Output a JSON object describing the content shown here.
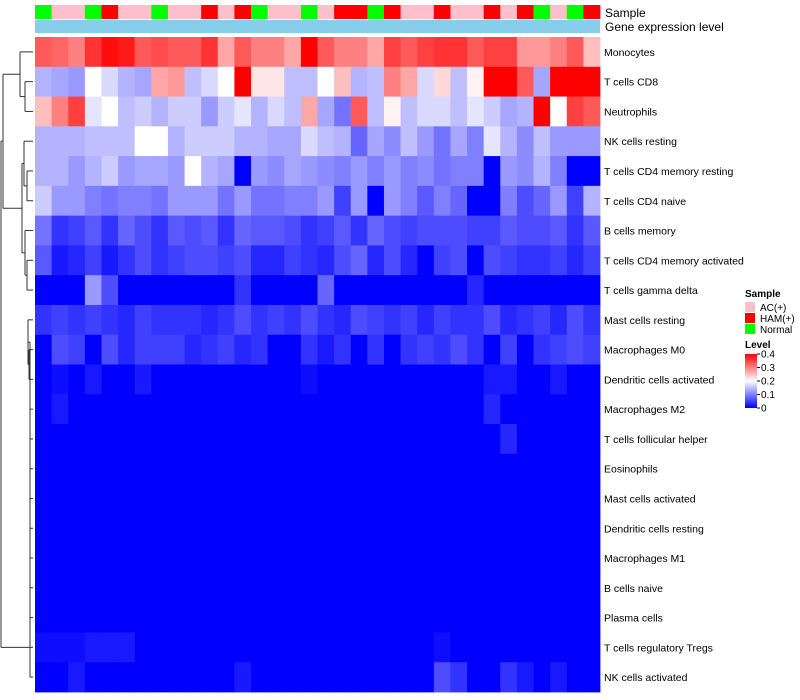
{
  "chart_data": {
    "type": "heatmap",
    "annotation_rows": [
      "Sample",
      "Gene expression level"
    ],
    "rows": [
      "Monocytes",
      "T cells CD8",
      "Neutrophils",
      "NK cells resting",
      "T cells CD4 memory resting",
      "T cells CD4 naive",
      "B cells memory",
      "T cells CD4 memory activated",
      "T cells gamma delta",
      "Mast cells resting",
      "Macrophages M0",
      "Dendritic cells activated",
      "Macrophages M2",
      "T cells follicular helper",
      "Eosinophils",
      "Mast cells activated",
      "Dendritic cells resting",
      "Macrophages M1",
      "B cells naive",
      "Plasma cells",
      "T cells regulatory  Tregs",
      "NK cells activated"
    ],
    "sample_groups": [
      "Normal",
      "AC(+)",
      "AC(+)",
      "Normal",
      "HAM(+)",
      "AC(+)",
      "AC(+)",
      "Normal",
      "AC(+)",
      "AC(+)",
      "HAM(+)",
      "AC(+)",
      "HAM(+)",
      "Normal",
      "AC(+)",
      "AC(+)",
      "Normal",
      "AC(+)",
      "HAM(+)",
      "HAM(+)",
      "Normal",
      "HAM(+)",
      "AC(+)",
      "AC(+)",
      "HAM(+)",
      "AC(+)",
      "AC(+)",
      "HAM(+)",
      "AC(+)",
      "HAM(+)",
      "Normal",
      "AC(+)",
      "Normal",
      "HAM(+)"
    ],
    "values": [
      [
        0.33,
        0.32,
        0.3,
        0.36,
        0.39,
        0.38,
        0.33,
        0.34,
        0.33,
        0.33,
        0.36,
        0.27,
        0.33,
        0.3,
        0.3,
        0.27,
        0.4,
        0.33,
        0.3,
        0.3,
        0.27,
        0.35,
        0.33,
        0.35,
        0.36,
        0.36,
        0.33,
        0.35,
        0.35,
        0.28,
        0.28,
        0.3,
        0.33,
        0.25
      ],
      [
        0.14,
        0.13,
        0.12,
        0.2,
        0.17,
        0.14,
        0.13,
        0.27,
        0.28,
        0.15,
        0.17,
        0.2,
        0.4,
        0.22,
        0.22,
        0.15,
        0.15,
        0.2,
        0.25,
        0.14,
        0.15,
        0.3,
        0.27,
        0.17,
        0.23,
        0.15,
        0.21,
        0.4,
        0.4,
        0.33,
        0.13,
        0.4,
        0.4,
        0.4
      ],
      [
        0.25,
        0.3,
        0.35,
        0.18,
        0.2,
        0.15,
        0.16,
        0.14,
        0.16,
        0.16,
        0.12,
        0.16,
        0.18,
        0.14,
        0.17,
        0.15,
        0.27,
        0.13,
        0.09,
        0.33,
        0.15,
        0.21,
        0.15,
        0.17,
        0.17,
        0.15,
        0.18,
        0.16,
        0.13,
        0.14,
        0.4,
        0.2,
        0.35,
        0.33
      ],
      [
        0.14,
        0.14,
        0.14,
        0.15,
        0.15,
        0.15,
        0.2,
        0.2,
        0.14,
        0.16,
        0.16,
        0.16,
        0.14,
        0.14,
        0.13,
        0.13,
        0.17,
        0.15,
        0.14,
        0.08,
        0.13,
        0.11,
        0.15,
        0.12,
        0.09,
        0.13,
        0.1,
        0.18,
        0.14,
        0.11,
        0.15,
        0.12,
        0.12,
        0.12
      ],
      [
        0.14,
        0.14,
        0.12,
        0.14,
        0.16,
        0.12,
        0.13,
        0.13,
        0.12,
        0.2,
        0.14,
        0.13,
        0.0,
        0.12,
        0.11,
        0.13,
        0.12,
        0.11,
        0.1,
        0.12,
        0.1,
        0.12,
        0.1,
        0.11,
        0.09,
        0.1,
        0.1,
        0.0,
        0.12,
        0.11,
        0.14,
        0.1,
        0.0,
        0.0
      ],
      [
        0.16,
        0.12,
        0.12,
        0.1,
        0.09,
        0.1,
        0.1,
        0.09,
        0.12,
        0.12,
        0.12,
        0.09,
        0.12,
        0.09,
        0.09,
        0.1,
        0.1,
        0.12,
        0.05,
        0.12,
        0.0,
        0.12,
        0.1,
        0.07,
        0.1,
        0.08,
        0.0,
        0.0,
        0.1,
        0.06,
        0.08,
        0.12,
        0.05,
        0.14
      ],
      [
        0.09,
        0.04,
        0.05,
        0.07,
        0.04,
        0.08,
        0.06,
        0.04,
        0.07,
        0.06,
        0.07,
        0.04,
        0.08,
        0.07,
        0.07,
        0.06,
        0.04,
        0.05,
        0.07,
        0.04,
        0.08,
        0.06,
        0.05,
        0.06,
        0.06,
        0.06,
        0.05,
        0.05,
        0.07,
        0.06,
        0.06,
        0.07,
        0.04,
        0.07
      ],
      [
        0.07,
        0.02,
        0.03,
        0.05,
        0.02,
        0.04,
        0.06,
        0.04,
        0.05,
        0.06,
        0.06,
        0.05,
        0.06,
        0.03,
        0.03,
        0.05,
        0.04,
        0.03,
        0.06,
        0.08,
        0.03,
        0.06,
        0.03,
        0.0,
        0.05,
        0.06,
        0.0,
        0.06,
        0.05,
        0.04,
        0.04,
        0.05,
        0.03,
        0.05
      ],
      [
        0.0,
        0.0,
        0.0,
        0.12,
        0.06,
        0.0,
        0.0,
        0.0,
        0.0,
        0.0,
        0.0,
        0.0,
        0.04,
        0.0,
        0.0,
        0.0,
        0.0,
        0.08,
        0.0,
        0.0,
        0.0,
        0.0,
        0.0,
        0.0,
        0.0,
        0.0,
        0.03,
        0.0,
        0.0,
        0.0,
        0.0,
        0.0,
        0.0,
        0.0
      ],
      [
        0.04,
        0.05,
        0.04,
        0.05,
        0.04,
        0.03,
        0.05,
        0.04,
        0.04,
        0.04,
        0.03,
        0.04,
        0.06,
        0.04,
        0.05,
        0.04,
        0.06,
        0.04,
        0.03,
        0.06,
        0.05,
        0.04,
        0.05,
        0.03,
        0.05,
        0.04,
        0.04,
        0.06,
        0.03,
        0.04,
        0.05,
        0.03,
        0.06,
        0.04
      ],
      [
        0.0,
        0.06,
        0.05,
        0.0,
        0.06,
        0.03,
        0.05,
        0.05,
        0.05,
        0.03,
        0.04,
        0.05,
        0.03,
        0.04,
        0.0,
        0.0,
        0.04,
        0.02,
        0.04,
        0.0,
        0.04,
        0.0,
        0.04,
        0.05,
        0.04,
        0.06,
        0.04,
        0.0,
        0.05,
        0.0,
        0.04,
        0.05,
        0.06,
        0.05
      ],
      [
        0.0,
        0.01,
        0.0,
        0.02,
        0.0,
        0.0,
        0.02,
        0.0,
        0.0,
        0.0,
        0.0,
        0.0,
        0.0,
        0.0,
        0.0,
        0.0,
        0.01,
        0.0,
        0.0,
        0.0,
        0.0,
        0.0,
        0.0,
        0.0,
        0.0,
        0.0,
        0.0,
        0.02,
        0.02,
        0.0,
        0.0,
        0.02,
        0.0,
        0.0
      ],
      [
        0.0,
        0.02,
        0.0,
        0.0,
        0.0,
        0.0,
        0.0,
        0.0,
        0.0,
        0.0,
        0.0,
        0.0,
        0.0,
        0.0,
        0.0,
        0.0,
        0.0,
        0.0,
        0.0,
        0.0,
        0.0,
        0.0,
        0.0,
        0.0,
        0.0,
        0.0,
        0.0,
        0.03,
        0.0,
        0.0,
        0.0,
        0.0,
        0.0,
        0.0
      ],
      [
        0.0,
        0.0,
        0.0,
        0.0,
        0.0,
        0.0,
        0.0,
        0.0,
        0.0,
        0.0,
        0.0,
        0.0,
        0.0,
        0.0,
        0.0,
        0.0,
        0.0,
        0.0,
        0.0,
        0.0,
        0.0,
        0.0,
        0.0,
        0.0,
        0.0,
        0.0,
        0.0,
        0.0,
        0.03,
        0.0,
        0.0,
        0.0,
        0.0,
        0.0
      ],
      [
        0.0,
        0.0,
        0.0,
        0.0,
        0.0,
        0.0,
        0.0,
        0.0,
        0.0,
        0.0,
        0.0,
        0.0,
        0.0,
        0.0,
        0.0,
        0.0,
        0.0,
        0.0,
        0.0,
        0.0,
        0.0,
        0.0,
        0.0,
        0.0,
        0.0,
        0.0,
        0.0,
        0.0,
        0.0,
        0.0,
        0.0,
        0.0,
        0.0,
        0.0
      ],
      [
        0.0,
        0.0,
        0.0,
        0.0,
        0.0,
        0.0,
        0.0,
        0.0,
        0.0,
        0.0,
        0.0,
        0.0,
        0.0,
        0.0,
        0.0,
        0.0,
        0.0,
        0.0,
        0.0,
        0.0,
        0.0,
        0.0,
        0.0,
        0.0,
        0.0,
        0.0,
        0.0,
        0.0,
        0.0,
        0.0,
        0.0,
        0.0,
        0.0,
        0.0
      ],
      [
        0.0,
        0.0,
        0.0,
        0.0,
        0.0,
        0.0,
        0.0,
        0.0,
        0.0,
        0.0,
        0.0,
        0.0,
        0.0,
        0.0,
        0.0,
        0.0,
        0.0,
        0.0,
        0.0,
        0.0,
        0.0,
        0.0,
        0.0,
        0.0,
        0.0,
        0.0,
        0.0,
        0.0,
        0.0,
        0.0,
        0.0,
        0.0,
        0.0,
        0.0
      ],
      [
        0.0,
        0.0,
        0.0,
        0.0,
        0.0,
        0.0,
        0.0,
        0.0,
        0.0,
        0.0,
        0.0,
        0.0,
        0.0,
        0.0,
        0.0,
        0.0,
        0.0,
        0.0,
        0.0,
        0.0,
        0.0,
        0.0,
        0.0,
        0.0,
        0.0,
        0.0,
        0.0,
        0.0,
        0.0,
        0.0,
        0.0,
        0.0,
        0.0,
        0.0
      ],
      [
        0.0,
        0.0,
        0.0,
        0.0,
        0.0,
        0.0,
        0.0,
        0.0,
        0.0,
        0.0,
        0.0,
        0.0,
        0.0,
        0.0,
        0.0,
        0.0,
        0.0,
        0.0,
        0.0,
        0.0,
        0.0,
        0.0,
        0.0,
        0.0,
        0.0,
        0.0,
        0.0,
        0.0,
        0.0,
        0.0,
        0.0,
        0.0,
        0.0,
        0.0
      ],
      [
        0.0,
        0.0,
        0.0,
        0.0,
        0.0,
        0.0,
        0.0,
        0.0,
        0.0,
        0.0,
        0.0,
        0.0,
        0.0,
        0.0,
        0.0,
        0.0,
        0.0,
        0.0,
        0.0,
        0.0,
        0.0,
        0.0,
        0.0,
        0.0,
        0.0,
        0.0,
        0.0,
        0.0,
        0.0,
        0.0,
        0.0,
        0.0,
        0.0,
        0.0
      ],
      [
        0.01,
        0.01,
        0.01,
        0.02,
        0.02,
        0.02,
        0.0,
        0.0,
        0.0,
        0.0,
        0.0,
        0.0,
        0.0,
        0.0,
        0.0,
        0.0,
        0.0,
        0.0,
        0.0,
        0.0,
        0.0,
        0.0,
        0.0,
        0.0,
        0.01,
        0.0,
        0.0,
        0.0,
        0.0,
        0.0,
        0.0,
        0.0,
        0.0,
        0.0
      ],
      [
        0.0,
        0.0,
        0.02,
        0.0,
        0.0,
        0.0,
        0.0,
        0.0,
        0.0,
        0.0,
        0.0,
        0.0,
        0.02,
        0.0,
        0.0,
        0.0,
        0.0,
        0.0,
        0.0,
        0.0,
        0.0,
        0.0,
        0.0,
        0.0,
        0.06,
        0.04,
        0.0,
        0.0,
        0.04,
        0.02,
        0.0,
        0.02,
        0.0,
        0.0
      ]
    ],
    "legend": {
      "sample_title": "Sample",
      "sample_entries": [
        "AC(+)",
        "HAM(+)",
        "Normal"
      ],
      "level_title": "Level",
      "level_ticks": [
        "0.4",
        "0.3",
        "0.2",
        "0.1",
        "0"
      ],
      "level_tick_values": [
        0.4,
        0.3,
        0.2,
        0.1,
        0
      ]
    },
    "range": [
      0,
      0.4
    ]
  },
  "colors": {
    "low": "#0000ff",
    "mid": "#ffffff",
    "high": "#ff0000",
    "AC(+)": "#ffc0cb",
    "HAM(+)": "#ff0000",
    "Normal": "#00ff00",
    "gene_expression": "#87ceeb"
  }
}
